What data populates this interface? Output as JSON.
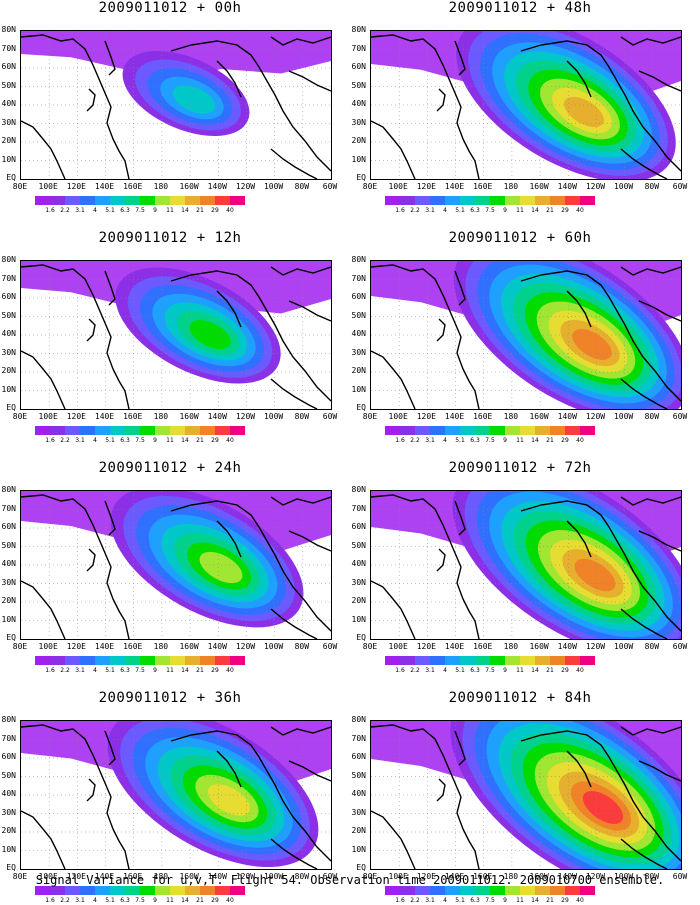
{
  "caption": "Signal Variance for u,v,T. Flight 54. Observation time 2009011012. 2009010700 ensemble.",
  "panels": [
    {
      "title": "2009011012 + 00h",
      "intensity": 0.25
    },
    {
      "title": "2009011012 + 12h",
      "intensity": 0.45
    },
    {
      "title": "2009011012 + 24h",
      "intensity": 0.6
    },
    {
      "title": "2009011012 + 36h",
      "intensity": 0.7
    },
    {
      "title": "2009011012 + 48h",
      "intensity": 0.75
    },
    {
      "title": "2009011012 + 60h",
      "intensity": 0.85
    },
    {
      "title": "2009011012 + 72h",
      "intensity": 0.9
    },
    {
      "title": "2009011012 + 84h",
      "intensity": 1.0
    }
  ],
  "lat_labels": [
    "80N",
    "70N",
    "60N",
    "50N",
    "40N",
    "30N",
    "20N",
    "10N",
    "EQ"
  ],
  "lon_labels": [
    "80E",
    "100E",
    "120E",
    "140E",
    "160E",
    "180",
    "160W",
    "140W",
    "120W",
    "100W",
    "80W",
    "60W"
  ],
  "colorbar": {
    "levels": [
      "1.6",
      "2.2",
      "3.1",
      "4",
      "5.1",
      "6.3",
      "7.5",
      "9",
      "11",
      "14",
      "21",
      "29",
      "40"
    ],
    "colors": [
      "#a020f0",
      "#8c30e8",
      "#6a5aff",
      "#3070ff",
      "#1ea0ff",
      "#00c8c8",
      "#00d28c",
      "#00dc00",
      "#a0e632",
      "#e6dc32",
      "#e6af2d",
      "#f08228",
      "#fa3c3c",
      "#f00082"
    ]
  }
}
